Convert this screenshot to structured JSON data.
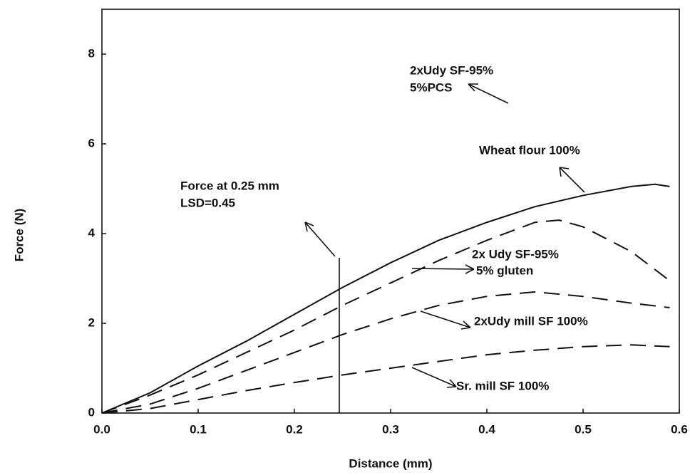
{
  "chart_data": {
    "type": "line",
    "x_label": "Distance (mm)",
    "y_label": "Force (N)",
    "xlim": [
      0,
      0.6
    ],
    "ylim": [
      0,
      9
    ],
    "xticks": [
      {
        "value": 0,
        "label": "0.0"
      },
      0.1,
      0.2,
      0.3,
      0.4,
      0.5,
      0.6
    ],
    "yticks": [
      0,
      2,
      4,
      6,
      8
    ],
    "series": [
      {
        "label": [
          "Wheat flour 100%"
        ],
        "color": "#111111",
        "dash": false,
        "x": [
          0,
          0.05,
          0.1,
          0.15,
          0.2,
          0.25,
          0.3,
          0.35,
          0.4,
          0.45,
          0.5,
          0.55,
          0.575,
          0.59
        ],
        "values": [
          0,
          0.45,
          1.05,
          1.6,
          2.2,
          2.8,
          3.35,
          3.85,
          4.25,
          4.6,
          4.85,
          5.05,
          5.1,
          5.05
        ]
      },
      {
        "label": [
          "2x Udy SF-95%",
          "5% gluten"
        ],
        "color": "#111111",
        "dash": true,
        "x": [
          0,
          0.05,
          0.1,
          0.15,
          0.2,
          0.25,
          0.3,
          0.35,
          0.4,
          0.45,
          0.475,
          0.5,
          0.55,
          0.59
        ],
        "values": [
          0,
          0.4,
          0.85,
          1.35,
          1.85,
          2.4,
          2.9,
          3.4,
          3.85,
          4.25,
          4.3,
          4.15,
          3.6,
          2.95
        ]
      },
      {
        "label": [
          "2xUdy mill SF 100%"
        ],
        "color": "#111111",
        "dash": true,
        "x": [
          0,
          0.05,
          0.1,
          0.15,
          0.2,
          0.25,
          0.3,
          0.35,
          0.4,
          0.45,
          0.5,
          0.55,
          0.59
        ],
        "values": [
          0,
          0.2,
          0.55,
          0.95,
          1.35,
          1.75,
          2.1,
          2.4,
          2.6,
          2.7,
          2.6,
          2.45,
          2.35
        ]
      },
      {
        "label": [
          "Sr. mill SF 100%"
        ],
        "color": "#111111",
        "dash": true,
        "x": [
          0,
          0.05,
          0.1,
          0.15,
          0.2,
          0.25,
          0.3,
          0.35,
          0.4,
          0.45,
          0.5,
          0.55,
          0.59
        ],
        "values": [
          0,
          0.1,
          0.3,
          0.5,
          0.68,
          0.85,
          1.0,
          1.15,
          1.3,
          1.4,
          1.48,
          1.52,
          1.48
        ]
      }
    ],
    "annotations": [
      [
        "2xUdy SF-95%",
        "5%PCS"
      ],
      [
        "Force at 0.25 mm",
        "LSD=0.45"
      ]
    ]
  }
}
